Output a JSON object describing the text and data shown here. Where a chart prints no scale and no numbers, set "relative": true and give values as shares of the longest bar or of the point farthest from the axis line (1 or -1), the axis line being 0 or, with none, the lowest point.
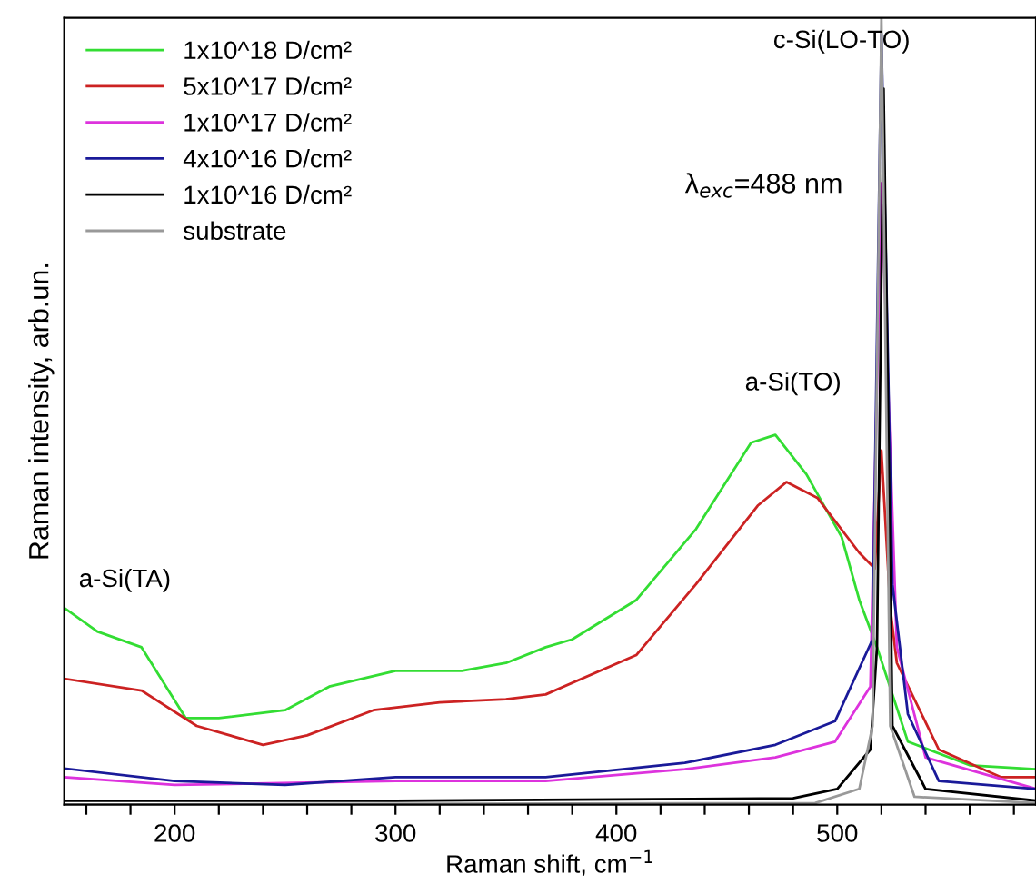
{
  "chart_data": {
    "type": "line",
    "relative": true,
    "xlabel": "Raman shift, cm$^{−1}$",
    "ylabel": "Raman intensity, arb.un.",
    "xlim": [
      150,
      590
    ],
    "xticks": [
      {
        "value": 160,
        "label": null
      },
      {
        "value": 180,
        "label": null
      },
      200,
      {
        "value": 220,
        "label": null
      },
      {
        "value": 240,
        "label": null
      },
      {
        "value": 260,
        "label": null
      },
      {
        "value": 280,
        "label": null
      },
      300,
      {
        "value": 320,
        "label": null
      },
      {
        "value": 340,
        "label": null
      },
      {
        "value": 360,
        "label": null
      },
      {
        "value": 380,
        "label": null
      },
      400,
      {
        "value": 420,
        "label": null
      },
      {
        "value": 440,
        "label": null
      },
      {
        "value": 460,
        "label": null
      },
      {
        "value": 480,
        "label": null
      },
      500,
      {
        "value": 520,
        "label": null
      },
      {
        "value": 540,
        "label": null
      },
      {
        "value": 560,
        "label": null
      },
      {
        "value": 580,
        "label": null
      }
    ],
    "tick_labels": "x",
    "grid": false,
    "legend": "top left",
    "marker": "none",
    "line_style": "solid",
    "series": [
      {
        "name": "1x10^18 D/cm²",
        "color": "#33dd33",
        "x": [
          150,
          165,
          185,
          205,
          220,
          250,
          270,
          300,
          330,
          350,
          368,
          380,
          409,
          436,
          461,
          472,
          486,
          502,
          510,
          518,
          532,
          560,
          590
        ],
        "values": [
          0.25,
          0.22,
          0.2,
          0.11,
          0.11,
          0.12,
          0.15,
          0.17,
          0.17,
          0.18,
          0.2,
          0.21,
          0.26,
          0.35,
          0.46,
          0.47,
          0.42,
          0.34,
          0.26,
          0.2,
          0.08,
          0.05,
          0.045
        ]
      },
      {
        "name": "5x10^17 D/cm²",
        "color": "#cc2222",
        "x": [
          150,
          185,
          210,
          240,
          260,
          290,
          320,
          350,
          368,
          409,
          436,
          464,
          477,
          491,
          510,
          517,
          520,
          524,
          527,
          546,
          574,
          590
        ],
        "values": [
          0.16,
          0.145,
          0.1,
          0.076,
          0.088,
          0.12,
          0.13,
          0.134,
          0.14,
          0.19,
          0.28,
          0.38,
          0.41,
          0.39,
          0.32,
          0.3,
          0.45,
          0.25,
          0.18,
          0.07,
          0.035,
          0.035
        ]
      },
      {
        "name": "1x10^17 D/cm²",
        "color": "#dd33dd",
        "x": [
          150,
          200,
          300,
          368,
          431,
          472,
          499,
          515,
          520,
          527,
          540,
          590
        ],
        "values": [
          0.035,
          0.025,
          0.03,
          0.03,
          0.045,
          0.06,
          0.08,
          0.15,
          0.79,
          0.2,
          0.06,
          0.02
        ]
      },
      {
        "name": "4x10^16 D/cm²",
        "color": "#1a1a99",
        "x": [
          150,
          200,
          250,
          300,
          368,
          431,
          472,
          499,
          516,
          520,
          525,
          532,
          546,
          590
        ],
        "values": [
          0.046,
          0.03,
          0.025,
          0.035,
          0.035,
          0.053,
          0.076,
          0.106,
          0.21,
          0.98,
          0.28,
          0.115,
          0.03,
          0.02
        ]
      },
      {
        "name": "1x10^16 D/cm²",
        "color": "#000000",
        "x": [
          150,
          300,
          480,
          500,
          515,
          518,
          521,
          525,
          540,
          590
        ],
        "values": [
          0.005,
          0.005,
          0.008,
          0.02,
          0.07,
          0.2,
          0.91,
          0.1,
          0.02,
          0.005
        ]
      },
      {
        "name": "substrate",
        "color": "#999999",
        "x": [
          150,
          490,
          510,
          516,
          520,
          524,
          535,
          590
        ],
        "values": [
          0.0,
          0.002,
          0.02,
          0.1,
          1.0,
          0.1,
          0.01,
          0.002
        ]
      }
    ],
    "annotations": [
      "a-Si(TA)",
      "a-Si(TO)",
      "c-Si(LO-TO)",
      "λ$_{exc}$=488 nm"
    ]
  }
}
